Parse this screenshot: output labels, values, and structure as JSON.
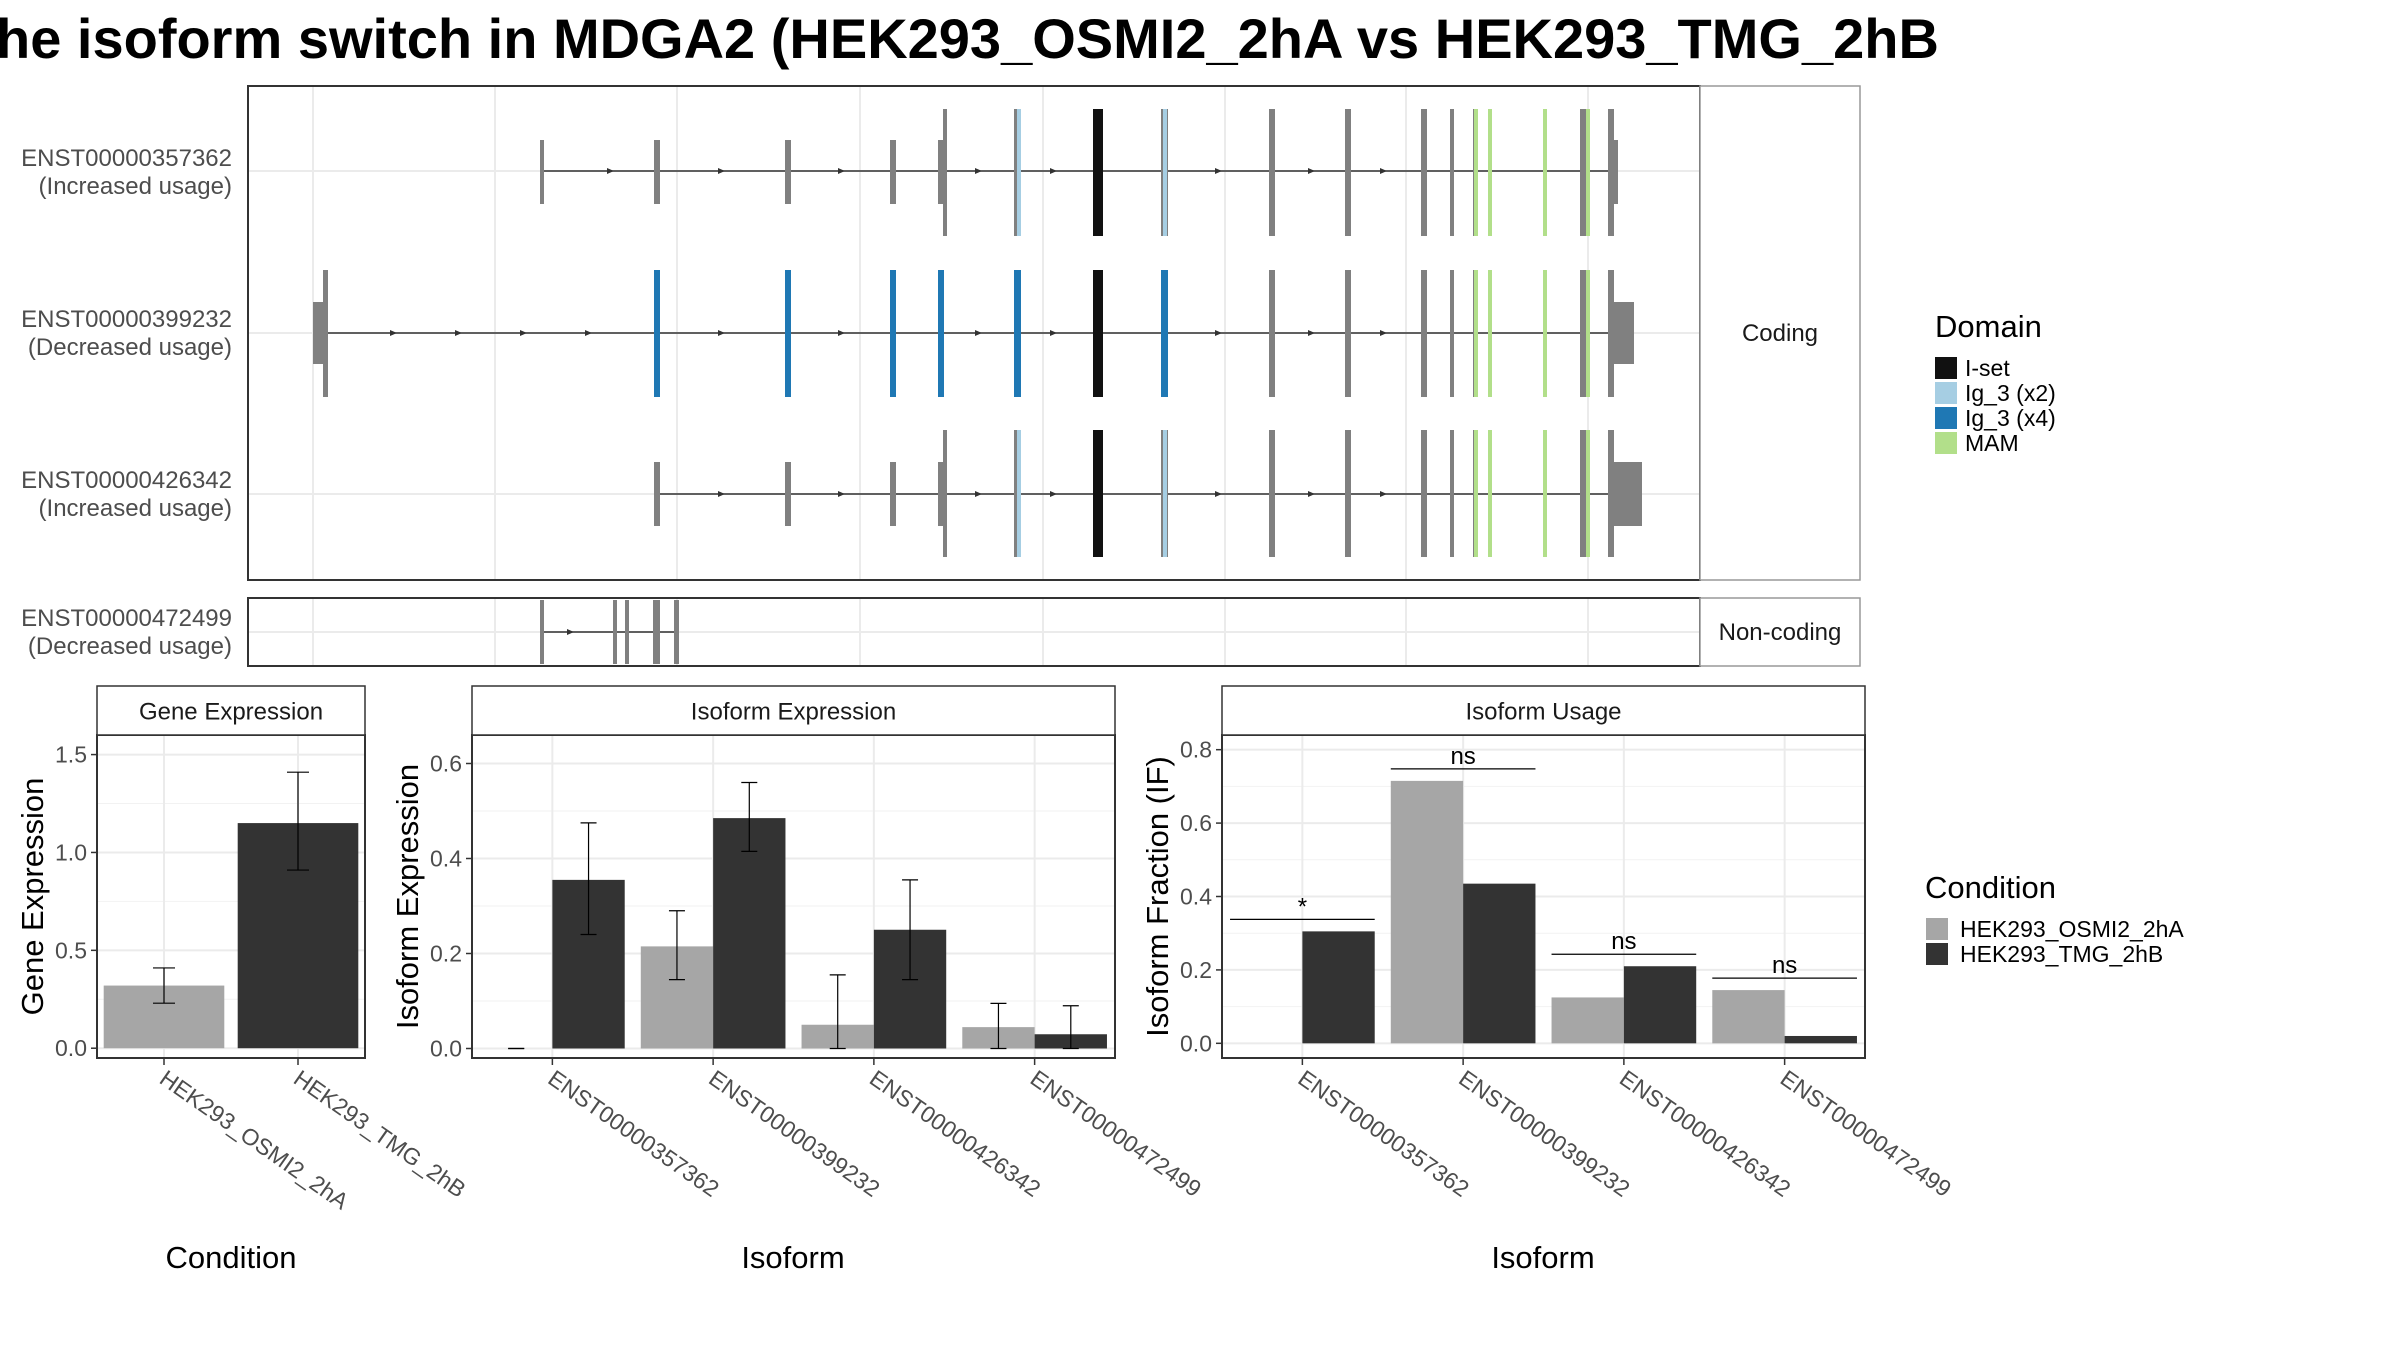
{
  "title": "he isoform switch in MDGA2 (HEK293_OSMI2_2hA vs HEK293_TMG_2hB",
  "structure": {
    "facets": [
      "Coding",
      "Non-coding"
    ],
    "isoforms": [
      {
        "id": "ENST00000357362",
        "label": "(Increased usage)",
        "facet": "Coding"
      },
      {
        "id": "ENST00000399232",
        "label": "(Decreased usage)",
        "facet": "Coding"
      },
      {
        "id": "ENST00000426342",
        "label": "(Increased usage)",
        "facet": "Coding"
      },
      {
        "id": "ENST00000472499",
        "label": "(Decreased usage)",
        "facet": "Non-coding"
      }
    ],
    "domain_legend": {
      "title": "Domain",
      "items": [
        {
          "name": "I-set",
          "color": "#111111"
        },
        {
          "name": "Ig_3 (x2)",
          "color": "#a6cee3"
        },
        {
          "name": "Ig_3 (x4)",
          "color": "#1f78b4"
        },
        {
          "name": "MAM",
          "color": "#b2df8a"
        }
      ]
    }
  },
  "condition_legend": {
    "title": "Condition",
    "items": [
      {
        "name": "HEK293_OSMI2_2hA",
        "color": "#a6a6a6"
      },
      {
        "name": "HEK293_TMG_2hB",
        "color": "#333333"
      }
    ]
  },
  "chart_data": [
    {
      "type": "bar",
      "title": "Gene Expression",
      "xlabel": "Condition",
      "ylabel": "Gene Expression",
      "categories": [
        "HEK293_OSMI2_2hA",
        "HEK293_TMG_2hB"
      ],
      "values": [
        0.32,
        1.15
      ],
      "error_low": [
        0.23,
        0.91
      ],
      "error_high": [
        0.41,
        1.41
      ],
      "colors": [
        "#a6a6a6",
        "#333333"
      ],
      "ylim": [
        -0.05,
        1.6
      ],
      "yticks": [
        "0.0",
        "0.5",
        "1.0",
        "1.5"
      ]
    },
    {
      "type": "bar",
      "title": "Isoform Expression",
      "xlabel": "Isoform",
      "ylabel": "Isoform Expression",
      "categories": [
        "ENST00000357362",
        "ENST00000399232",
        "ENST00000426342",
        "ENST00000472499"
      ],
      "series": [
        {
          "name": "HEK293_OSMI2_2hA",
          "values": [
            0.0,
            0.215,
            0.05,
            0.045
          ],
          "error_low": [
            0.0,
            0.145,
            0.0,
            0.0
          ],
          "error_high": [
            0.0,
            0.29,
            0.155,
            0.095
          ]
        },
        {
          "name": "HEK293_TMG_2hB",
          "values": [
            0.355,
            0.485,
            0.25,
            0.03
          ],
          "error_low": [
            0.24,
            0.415,
            0.145,
            0.0
          ],
          "error_high": [
            0.475,
            0.56,
            0.355,
            0.09
          ]
        }
      ],
      "ylim": [
        -0.02,
        0.66
      ],
      "yticks": [
        "0.0",
        "0.2",
        "0.4",
        "0.6"
      ]
    },
    {
      "type": "bar",
      "title": "Isoform Usage",
      "xlabel": "Isoform",
      "ylabel": "Isoform Fraction (IF)",
      "categories": [
        "ENST00000357362",
        "ENST00000399232",
        "ENST00000426342",
        "ENST00000472499"
      ],
      "series": [
        {
          "name": "HEK293_OSMI2_2hA",
          "values": [
            0.0,
            0.715,
            0.125,
            0.145
          ]
        },
        {
          "name": "HEK293_TMG_2hB",
          "values": [
            0.305,
            0.435,
            0.21,
            0.02
          ]
        }
      ],
      "significance": [
        "*",
        "ns",
        "ns",
        "ns"
      ],
      "ylim": [
        -0.04,
        0.84
      ],
      "yticks": [
        "0.0",
        "0.2",
        "0.4",
        "0.6",
        "0.8"
      ]
    }
  ]
}
